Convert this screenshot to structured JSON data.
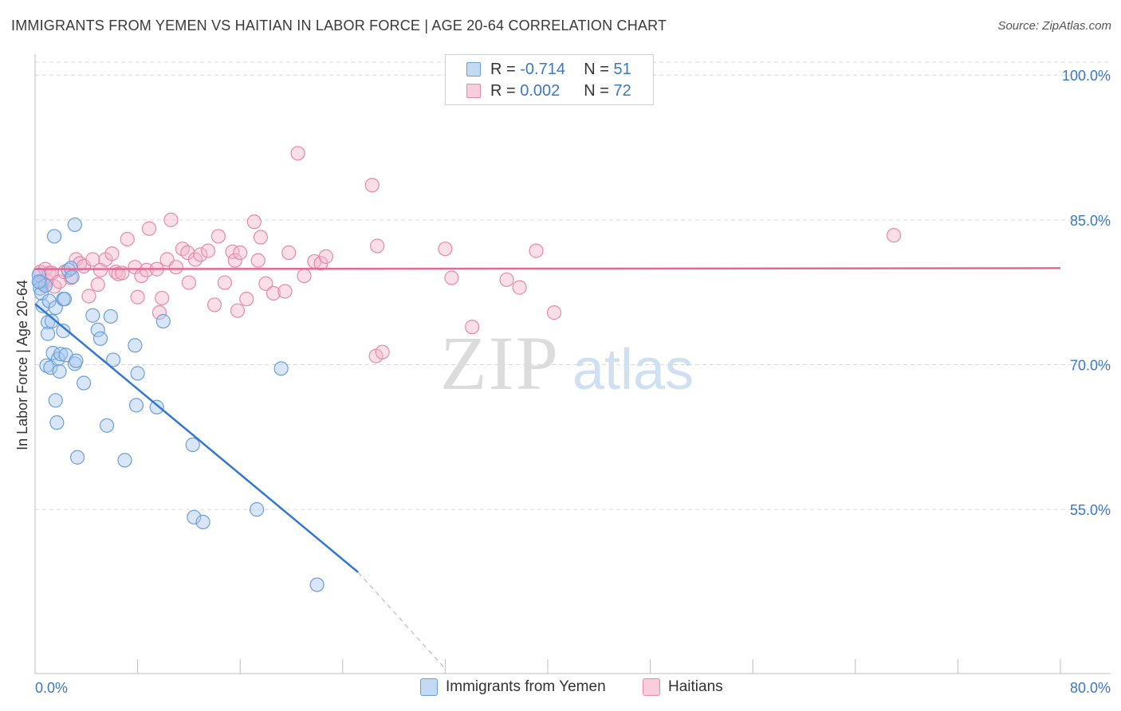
{
  "title": "IMMIGRANTS FROM YEMEN VS HAITIAN IN LABOR FORCE | AGE 20-64 CORRELATION CHART",
  "source": "Source: ZipAtlas.com",
  "watermark": {
    "zip": "ZIP",
    "atlas": "atlas"
  },
  "legend": {
    "blue": {
      "r_label": "R =",
      "r_value": "-0.714",
      "n_label": "N =",
      "n_value": "51"
    },
    "pink": {
      "r_label": "R =",
      "r_value": "0.002",
      "n_label": "N =",
      "n_value": "72"
    }
  },
  "colors": {
    "blue_fill": "#a9c8ee",
    "blue_stroke": "#6c9fd8",
    "blue_line": "#3078d4",
    "pink_fill": "#f5b8cc",
    "pink_stroke": "#e58aa8",
    "pink_line": "#e06a93",
    "tick_label": "#3b78c4",
    "grid": "#d9d9d9"
  },
  "chart_data": {
    "type": "scatter",
    "title": "IMMIGRANTS FROM YEMEN VS HAITIAN IN LABOR FORCE | AGE 20-64 CORRELATION CHART",
    "xlabel": "",
    "ylabel": "In Labor Force | Age 20-64",
    "xlim": [
      0,
      80
    ],
    "ylim": [
      38,
      102
    ],
    "x_tick_labels": [
      "0.0%",
      "80.0%"
    ],
    "y_ticks": [
      55,
      70,
      85,
      100
    ],
    "y_tick_labels": [
      "55.0%",
      "70.0%",
      "85.0%",
      "100.0%"
    ],
    "series": [
      {
        "name": "Immigrants from Yemen",
        "color": "blue",
        "trend": {
          "x0": 0,
          "y0": 76.3,
          "x1": 25.2,
          "y1": 48.5,
          "dash_x1": 32,
          "dash_y1": 38.5
        },
        "points": [
          [
            0.3,
            79.3
          ],
          [
            0.4,
            78.5
          ],
          [
            0.4,
            77.9
          ],
          [
            0.5,
            77.4
          ],
          [
            0.6,
            76.1
          ],
          [
            0.8,
            78.2
          ],
          [
            0.9,
            69.9
          ],
          [
            1.0,
            74.4
          ],
          [
            1.0,
            73.2
          ],
          [
            1.1,
            76.6
          ],
          [
            1.2,
            69.7
          ],
          [
            1.3,
            74.5
          ],
          [
            1.4,
            71.2
          ],
          [
            1.5,
            83.3
          ],
          [
            1.6,
            75.9
          ],
          [
            1.6,
            66.3
          ],
          [
            1.7,
            64.0
          ],
          [
            1.8,
            70.6
          ],
          [
            1.9,
            69.3
          ],
          [
            2.0,
            71.1
          ],
          [
            2.2,
            73.5
          ],
          [
            2.2,
            76.8
          ],
          [
            2.3,
            76.8
          ],
          [
            2.4,
            71.0
          ],
          [
            2.6,
            79.8
          ],
          [
            2.8,
            80.0
          ],
          [
            2.9,
            79.1
          ],
          [
            3.1,
            84.5
          ],
          [
            3.1,
            70.1
          ],
          [
            3.2,
            70.4
          ],
          [
            3.3,
            60.4
          ],
          [
            3.8,
            68.1
          ],
          [
            4.5,
            75.1
          ],
          [
            4.9,
            73.6
          ],
          [
            5.1,
            72.7
          ],
          [
            5.6,
            63.7
          ],
          [
            5.9,
            75.0
          ],
          [
            6.1,
            70.5
          ],
          [
            7.0,
            60.1
          ],
          [
            7.8,
            72.0
          ],
          [
            7.9,
            65.8
          ],
          [
            8.0,
            69.1
          ],
          [
            9.5,
            65.6
          ],
          [
            10.0,
            74.5
          ],
          [
            12.3,
            61.7
          ],
          [
            12.4,
            54.2
          ],
          [
            13.1,
            53.7
          ],
          [
            17.3,
            55.0
          ],
          [
            19.2,
            69.6
          ],
          [
            22.0,
            47.2
          ],
          [
            0.3,
            78.6
          ]
        ]
      },
      {
        "name": "Haitians",
        "color": "pink",
        "trend": {
          "x0": 0,
          "y0": 79.9,
          "x1": 80,
          "y1": 80.0
        },
        "points": [
          [
            0.4,
            79.6
          ],
          [
            0.6,
            78.4
          ],
          [
            0.8,
            79.9
          ],
          [
            0.9,
            78.7
          ],
          [
            1.1,
            79.5
          ],
          [
            1.3,
            79.5
          ],
          [
            1.5,
            78.1
          ],
          [
            1.9,
            78.6
          ],
          [
            2.3,
            79.6
          ],
          [
            2.8,
            79.0
          ],
          [
            3.2,
            80.9
          ],
          [
            3.5,
            80.5
          ],
          [
            3.8,
            80.2
          ],
          [
            4.2,
            77.1
          ],
          [
            4.5,
            80.9
          ],
          [
            4.9,
            78.3
          ],
          [
            5.1,
            79.8
          ],
          [
            5.5,
            80.9
          ],
          [
            6.0,
            81.5
          ],
          [
            6.3,
            79.6
          ],
          [
            6.5,
            79.4
          ],
          [
            6.8,
            79.5
          ],
          [
            7.2,
            83.0
          ],
          [
            7.8,
            80.1
          ],
          [
            8.0,
            77.0
          ],
          [
            8.3,
            79.2
          ],
          [
            8.7,
            79.8
          ],
          [
            8.9,
            84.1
          ],
          [
            9.5,
            79.9
          ],
          [
            9.7,
            75.4
          ],
          [
            9.9,
            76.9
          ],
          [
            10.3,
            80.9
          ],
          [
            10.6,
            85.0
          ],
          [
            11.0,
            80.1
          ],
          [
            11.5,
            82.0
          ],
          [
            11.9,
            81.6
          ],
          [
            12.0,
            78.5
          ],
          [
            12.5,
            80.9
          ],
          [
            12.9,
            81.4
          ],
          [
            13.5,
            81.8
          ],
          [
            14.0,
            76.2
          ],
          [
            14.3,
            83.3
          ],
          [
            14.8,
            78.5
          ],
          [
            15.4,
            81.7
          ],
          [
            15.6,
            80.8
          ],
          [
            15.8,
            75.6
          ],
          [
            16.0,
            81.6
          ],
          [
            16.5,
            76.8
          ],
          [
            17.1,
            84.8
          ],
          [
            17.4,
            80.8
          ],
          [
            17.6,
            83.2
          ],
          [
            18.0,
            78.4
          ],
          [
            18.6,
            77.4
          ],
          [
            19.5,
            77.6
          ],
          [
            19.8,
            81.6
          ],
          [
            20.5,
            91.9
          ],
          [
            21.0,
            79.2
          ],
          [
            21.8,
            80.7
          ],
          [
            22.3,
            80.5
          ],
          [
            22.7,
            81.2
          ],
          [
            26.3,
            88.6
          ],
          [
            26.6,
            70.9
          ],
          [
            27.1,
            71.3
          ],
          [
            26.7,
            82.3
          ],
          [
            32.0,
            82.0
          ],
          [
            32.5,
            79.0
          ],
          [
            34.1,
            73.9
          ],
          [
            36.8,
            78.8
          ],
          [
            37.8,
            78.0
          ],
          [
            39.1,
            81.8
          ],
          [
            40.5,
            75.4
          ],
          [
            67.0,
            83.4
          ]
        ]
      }
    ]
  },
  "bottom_legend": {
    "blue_label": "Immigrants from Yemen",
    "pink_label": "Haitians"
  }
}
